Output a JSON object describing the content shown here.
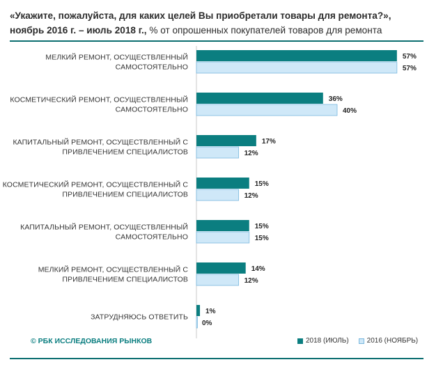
{
  "title": {
    "question": "«Укажите, пожалуйста, для каких целей Вы приобретали товары для ремонта?»,",
    "period": "ноябрь 2016 г. – июль 2018 г.,",
    "unit_note": " % от опрошенных покупателей товаров для ремонта"
  },
  "footer": {
    "copyright": "© РБК ИССЛЕДОВАНИЯ РЫНКОВ"
  },
  "colors": {
    "series_2018": "#0b7e80",
    "series_2016": "#cfe8f8",
    "series_2016_border": "#7ab8de",
    "accent_rule": "#0b6e70"
  },
  "chart_data": {
    "type": "bar",
    "orientation": "horizontal",
    "categories": [
      [
        "МЕЛКИЙ РЕМОНТ, ОСУЩЕСТВЛЕННЫЙ",
        "САМОСТОЯТЕЛЬНО"
      ],
      [
        "КОСМЕТИЧЕСКИЙ РЕМОНТ, ОСУЩЕСТВЛЕННЫЙ",
        "САМОСТОЯТЕЛЬНО"
      ],
      [
        "КАПИТАЛЬНЫЙ РЕМОНТ, ОСУЩЕСТВЛЕННЫЙ С",
        "ПРИВЛЕЧЕНИЕМ СПЕЦИАЛИСТОВ"
      ],
      [
        "КОСМЕТИЧЕСКИЙ РЕМОНТ, ОСУЩЕСТВЛЕННЫЙ С",
        "ПРИВЛЕЧЕНИЕМ СПЕЦИАЛИСТОВ"
      ],
      [
        "КАПИТАЛЬНЫЙ РЕМОНТ, ОСУЩЕСТВЛЕННЫЙ",
        "САМОСТОЯТЕЛЬНО"
      ],
      [
        "МЕЛКИЙ РЕМОНТ, ОСУЩЕСТВЛЕННЫЙ С",
        "ПРИВЛЕЧЕНИЕМ СПЕЦИАЛИСТОВ"
      ],
      [
        "ЗАТРУДНЯЮСЬ ОТВЕТИТЬ"
      ]
    ],
    "series": [
      {
        "name": "2018 (ИЮЛЬ)",
        "values": [
          57,
          36,
          17,
          15,
          15,
          14,
          1
        ],
        "labels": [
          "57%",
          "36%",
          "17%",
          "15%",
          "15%",
          "14%",
          "1%"
        ]
      },
      {
        "name": "2016 (НОЯБРЬ)",
        "values": [
          57,
          40,
          12,
          12,
          15,
          12,
          0
        ],
        "labels": [
          "57%",
          "40%",
          "12%",
          "12%",
          "15%",
          "12%",
          "0%"
        ]
      }
    ],
    "xlim": [
      0,
      60
    ],
    "legend_position": "bottom-right",
    "grid": false
  }
}
